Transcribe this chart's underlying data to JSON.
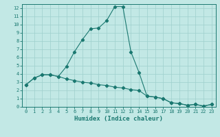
{
  "xlabel": "Humidex (Indice chaleur)",
  "background_color": "#c2e8e5",
  "grid_color": "#9ecfcc",
  "line_color": "#1a7870",
  "line1_x": [
    0,
    1,
    2,
    3,
    4,
    5,
    6,
    7,
    8,
    9,
    10,
    11,
    12,
    13,
    14,
    15,
    16,
    17,
    18,
    19,
    20,
    21,
    22,
    23
  ],
  "line1_y": [
    2.7,
    3.5,
    3.9,
    3.9,
    3.7,
    4.9,
    6.7,
    8.2,
    9.5,
    9.6,
    10.5,
    12.2,
    12.2,
    6.7,
    4.2,
    1.3,
    1.2,
    1.0,
    0.5,
    0.4,
    0.2,
    0.3,
    0.1,
    0.3
  ],
  "line2_x": [
    0,
    1,
    2,
    3,
    4,
    5,
    6,
    7,
    8,
    9,
    10,
    11,
    12,
    13,
    14,
    15,
    16,
    17,
    18,
    19,
    20,
    21,
    22,
    23
  ],
  "line2_y": [
    2.7,
    3.5,
    3.9,
    3.9,
    3.7,
    3.4,
    3.2,
    3.0,
    2.9,
    2.7,
    2.6,
    2.4,
    2.3,
    2.1,
    2.0,
    1.3,
    1.2,
    1.0,
    0.5,
    0.4,
    0.2,
    0.3,
    0.1,
    0.3
  ],
  "xlim": [
    -0.5,
    23.5
  ],
  "ylim": [
    0,
    12.5
  ],
  "yticks": [
    0,
    1,
    2,
    3,
    4,
    5,
    6,
    7,
    8,
    9,
    10,
    11,
    12
  ],
  "xticks": [
    0,
    1,
    2,
    3,
    4,
    5,
    6,
    7,
    8,
    9,
    10,
    11,
    12,
    13,
    14,
    15,
    16,
    17,
    18,
    19,
    20,
    21,
    22,
    23
  ],
  "tick_fontsize": 5.0,
  "xlabel_fontsize": 6.5,
  "marker_size": 2.2,
  "line_width": 0.8
}
